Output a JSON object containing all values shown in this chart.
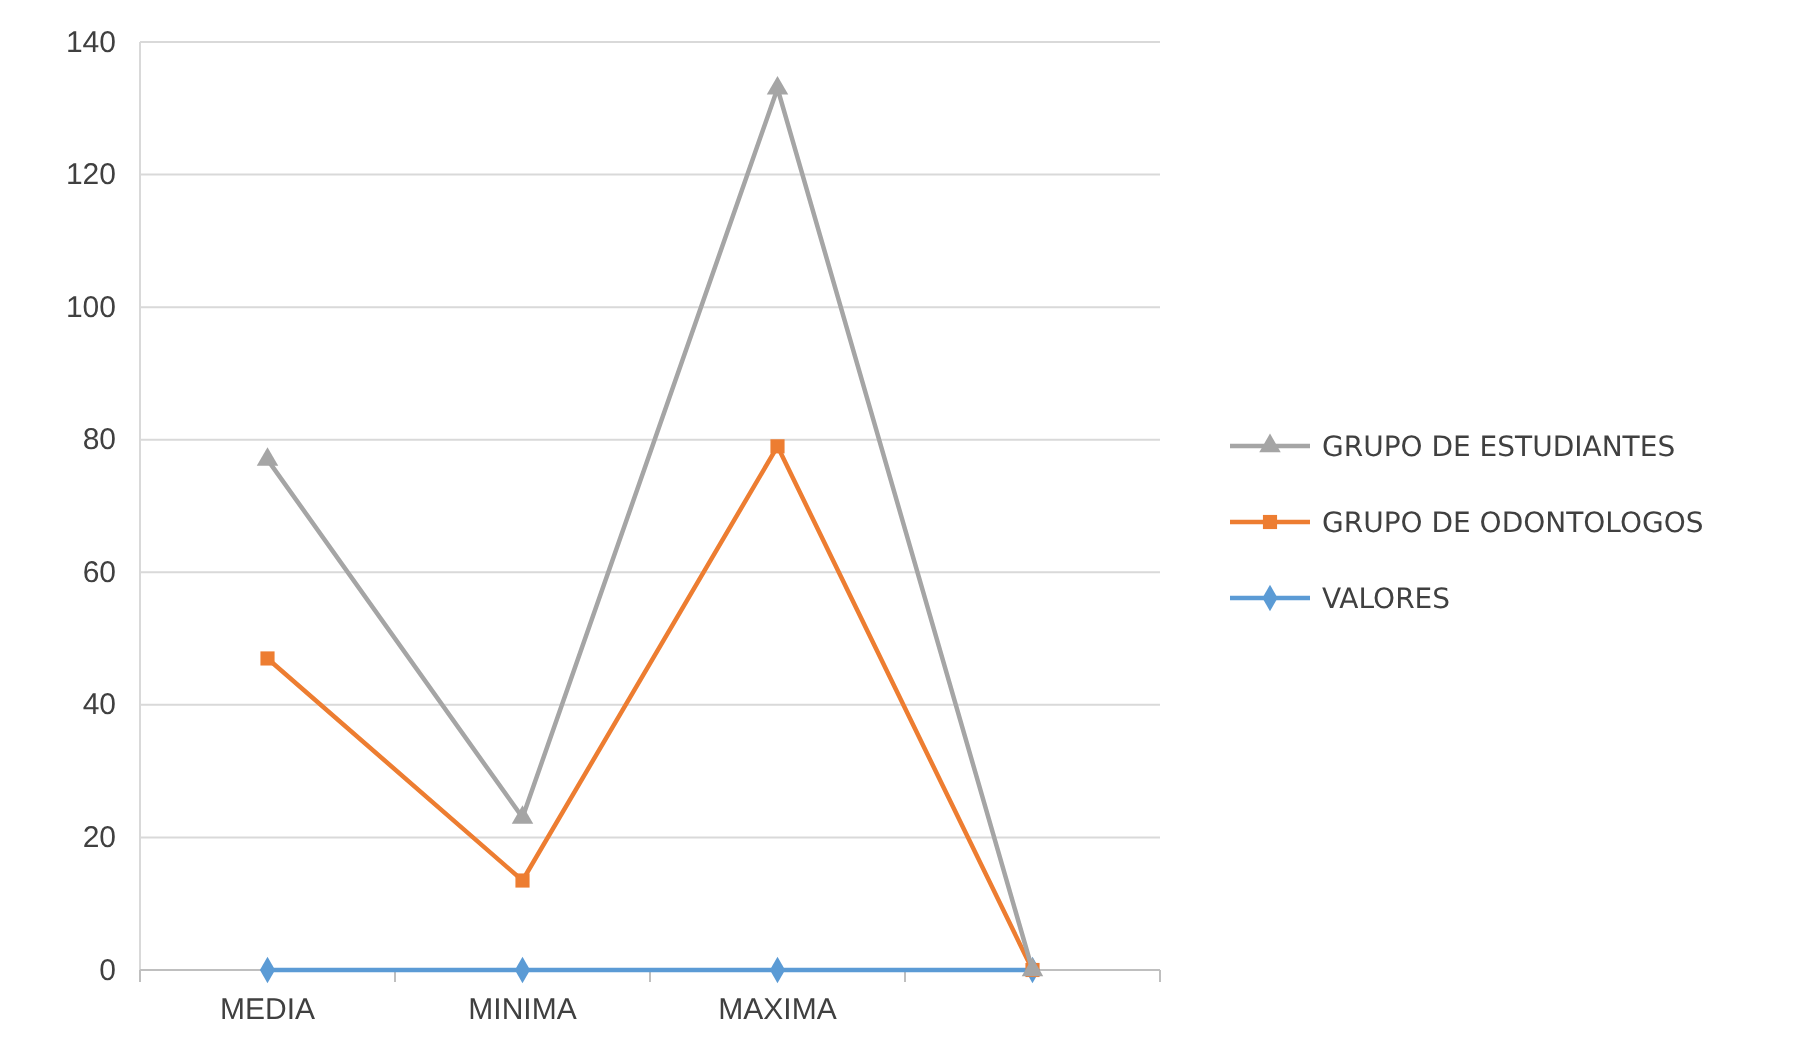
{
  "chart_data": {
    "type": "line",
    "categories": [
      "MEDIA",
      "MINIMA",
      "MAXIMA",
      null
    ],
    "series": [
      {
        "name": "GRUPO DE ESTUDIANTES",
        "color": "#a5a5a5",
        "marker": "triangle",
        "values": [
          77,
          23,
          133,
          0
        ]
      },
      {
        "name": "GRUPO DE ODONTOLOGOS",
        "color": "#ed7d31",
        "marker": "square",
        "values": [
          47,
          13.5,
          79,
          0
        ]
      },
      {
        "name": "VALORES",
        "color": "#5b9bd5",
        "marker": "diamond",
        "values": [
          0,
          0,
          0,
          0
        ]
      }
    ],
    "ylim": [
      0,
      140
    ],
    "yticks": [
      0,
      20,
      40,
      60,
      80,
      100,
      120,
      140
    ],
    "grid": "y",
    "legend": "right",
    "line_style": "solid"
  }
}
